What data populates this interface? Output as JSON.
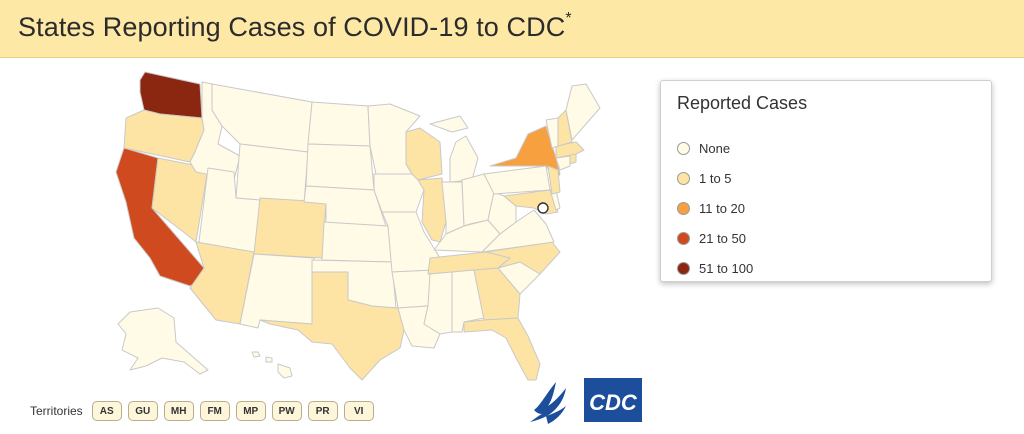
{
  "header": {
    "title": "States Reporting Cases of COVID-19 to CDC",
    "title_mark": "*"
  },
  "legend": {
    "title": "Reported Cases",
    "items": [
      {
        "label": "None",
        "color": "#fffbe6"
      },
      {
        "label": "1 to 5",
        "color": "#fde4a4"
      },
      {
        "label": "11 to 20",
        "color": "#f7a040"
      },
      {
        "label": "21 to 50",
        "color": "#cf4b1f"
      },
      {
        "label": "51 to 100",
        "color": "#8b2710"
      }
    ]
  },
  "map": {
    "colors": {
      "none": "#fffbe6",
      "low": "#fde4a4",
      "mid": "#f7a040",
      "high": "#cf4b1f",
      "vhigh": "#8b2710"
    },
    "states_reporting": {
      "vhigh": [
        "Washington"
      ],
      "high": [
        "California"
      ],
      "mid": [
        "New York"
      ],
      "low": [
        "Oregon",
        "Nevada",
        "Arizona",
        "Colorado",
        "Texas",
        "Illinois",
        "Wisconsin",
        "Tennessee",
        "North Carolina",
        "Georgia",
        "Florida",
        "New Jersey",
        "Massachusetts",
        "New Hampshire",
        "Rhode Island",
        "Maryland"
      ]
    }
  },
  "territories": {
    "label": "Territories",
    "items": [
      "AS",
      "GU",
      "MH",
      "FM",
      "MP",
      "PW",
      "PR",
      "VI"
    ]
  },
  "logos": {
    "agency_mark": "CDC",
    "hhs_icon": "hhs-eagle-icon"
  }
}
